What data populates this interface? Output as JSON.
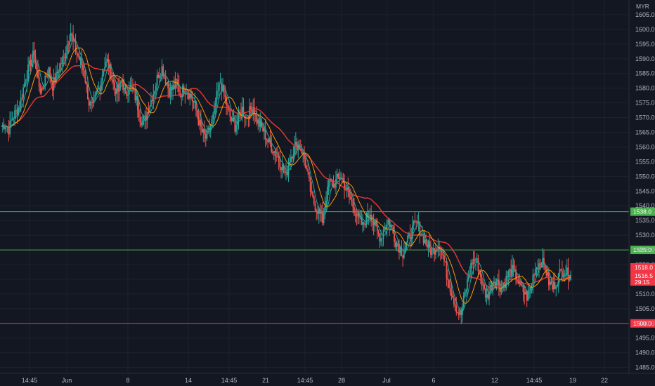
{
  "chart_data": {
    "type": "candlestick",
    "currency": "MYR",
    "ylim": [
      1483,
      1610
    ],
    "y_ticks": [
      1485.0,
      1490.0,
      1495.0,
      1500.0,
      1505.0,
      1510.0,
      1515.0,
      1520.0,
      1525.0,
      1530.0,
      1535.0,
      1540.0,
      1545.0,
      1550.0,
      1555.0,
      1560.0,
      1565.0,
      1570.0,
      1575.0,
      1580.0,
      1585.0,
      1590.0,
      1595.0,
      1600.0,
      1605.0
    ],
    "x_ticks": [
      "14:45",
      "Jun",
      "8",
      "14",
      "14:45",
      "21",
      "14:45",
      "28",
      "Jul",
      "6",
      "12",
      "14:45",
      "19",
      "22"
    ],
    "horizontal_lines": [
      {
        "price": 1538.0,
        "label": "1538.0",
        "color": "#4caf50"
      },
      {
        "price": 1525.0,
        "label": "1525.0",
        "color": "#4caf50"
      },
      {
        "price": 1500.0,
        "label": "1500.0",
        "color": "#f23645"
      }
    ],
    "price_badges": [
      {
        "label": "1518.0",
        "color": "#f23645"
      },
      {
        "label": "1516.5",
        "color": "#f23645"
      },
      {
        "label": "29:15",
        "color": "#f23645"
      }
    ],
    "close_path": [
      1567,
      1568,
      1566,
      1570,
      1572,
      1574,
      1580,
      1585,
      1589,
      1592,
      1583,
      1578,
      1584,
      1586,
      1581,
      1584,
      1588,
      1590,
      1595,
      1599,
      1594,
      1591,
      1588,
      1583,
      1575,
      1573,
      1578,
      1581,
      1587,
      1589,
      1585,
      1580,
      1579,
      1583,
      1577,
      1581,
      1579,
      1576,
      1570,
      1568,
      1572,
      1576,
      1580,
      1585,
      1587,
      1583,
      1579,
      1580,
      1582,
      1578,
      1580,
      1579,
      1577,
      1574,
      1569,
      1565,
      1563,
      1566,
      1570,
      1577,
      1582,
      1578,
      1573,
      1569,
      1567,
      1570,
      1573,
      1570,
      1572,
      1574,
      1569,
      1567,
      1565,
      1562,
      1560,
      1558,
      1556,
      1553,
      1550,
      1556,
      1559,
      1561,
      1560,
      1556,
      1550,
      1543,
      1540,
      1538,
      1535,
      1543,
      1548,
      1547,
      1549,
      1550,
      1547,
      1544,
      1541,
      1538,
      1535,
      1533,
      1536,
      1538,
      1534,
      1531,
      1529,
      1533,
      1535,
      1532,
      1528,
      1526,
      1524,
      1527,
      1530,
      1533,
      1534,
      1531,
      1528,
      1526,
      1524,
      1526,
      1527,
      1523,
      1517,
      1512,
      1508,
      1504,
      1503,
      1510,
      1516,
      1521,
      1522,
      1518,
      1512,
      1509,
      1512,
      1515,
      1514,
      1512,
      1514,
      1517,
      1518,
      1516,
      1513,
      1511,
      1509,
      1512,
      1518,
      1520,
      1521,
      1519,
      1514,
      1512,
      1514,
      1517,
      1518,
      1517,
      1516.5
    ],
    "moving_averages": [
      {
        "color": "#e53935"
      },
      {
        "color": "#ff9800"
      },
      {
        "color": "#26a69a"
      }
    ],
    "candle_colors": {
      "up": "#26a69a",
      "down": "#ef5350"
    }
  }
}
